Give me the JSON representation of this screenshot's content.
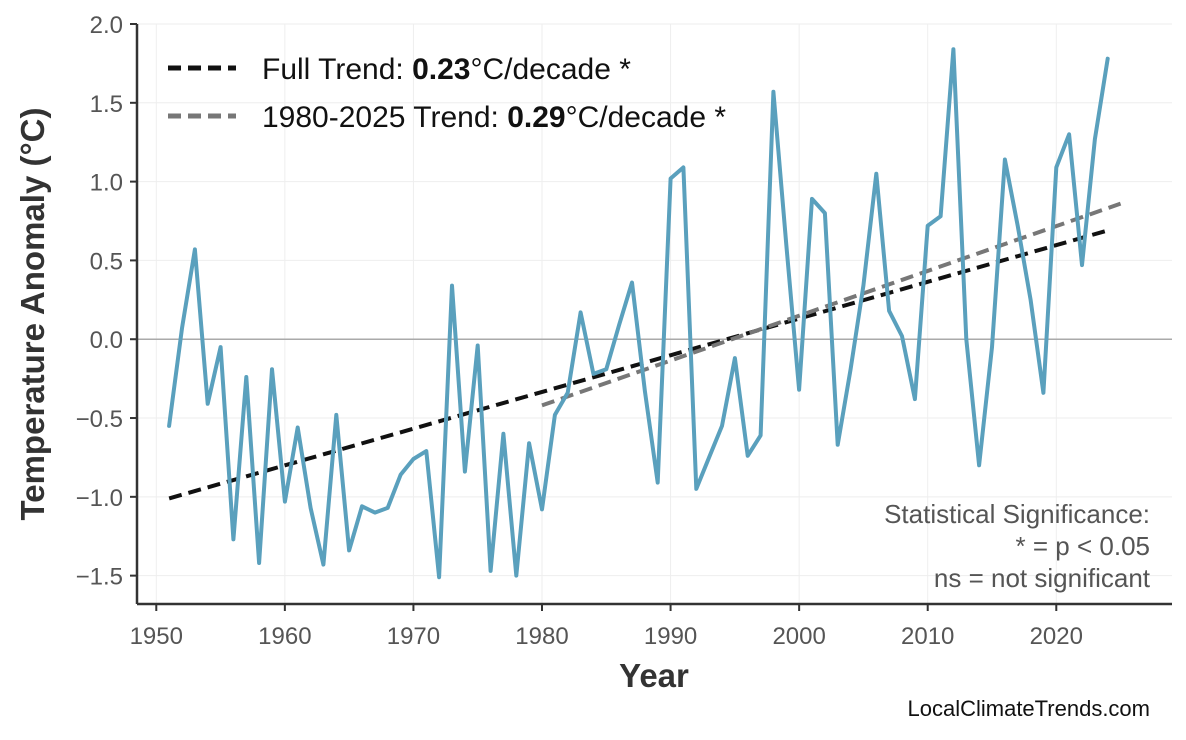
{
  "chart_data": {
    "type": "line",
    "title": "",
    "xlabel": "Year",
    "ylabel": "Temperature Anomaly (°C)",
    "xlim": [
      1948.5,
      2029
    ],
    "ylim": [
      -1.68,
      2.0
    ],
    "xticks": [
      1950,
      1960,
      1970,
      1980,
      1990,
      2000,
      2010,
      2020
    ],
    "yticks": [
      -1.5,
      -1.0,
      -0.5,
      0.0,
      0.5,
      1.0,
      1.5,
      2.0
    ],
    "xtick_labels": [
      "1950",
      "1960",
      "1970",
      "1980",
      "1990",
      "2000",
      "2010",
      "2020"
    ],
    "ytick_labels": [
      "−1.5",
      "−1.0",
      "−0.5",
      "0.0",
      "0.5",
      "1.0",
      "1.5",
      "2.0"
    ],
    "grid": true,
    "zero_line": true,
    "series": [
      {
        "color": "#5aa0bd",
        "x": [
          1951,
          1952,
          1953,
          1954,
          1955,
          1956,
          1957,
          1958,
          1959,
          1960,
          1961,
          1962,
          1963,
          1964,
          1965,
          1966,
          1967,
          1968,
          1969,
          1970,
          1971,
          1972,
          1973,
          1974,
          1975,
          1976,
          1977,
          1978,
          1979,
          1980,
          1981,
          1982,
          1983,
          1984,
          1985,
          1986,
          1987,
          1988,
          1989,
          1990,
          1991,
          1992,
          1993,
          1994,
          1995,
          1996,
          1997,
          1998,
          1999,
          2000,
          2001,
          2002,
          2003,
          2004,
          2005,
          2006,
          2007,
          2008,
          2009,
          2010,
          2011,
          2012,
          2013,
          2014,
          2015,
          2016,
          2017,
          2018,
          2019,
          2020,
          2021,
          2022,
          2023,
          2024
        ],
        "values": [
          -0.55,
          0.07,
          0.57,
          -0.41,
          -0.05,
          -1.27,
          -0.24,
          -1.42,
          -0.19,
          -1.03,
          -0.56,
          -1.07,
          -1.43,
          -0.48,
          -1.34,
          -1.06,
          -1.1,
          -1.07,
          -0.86,
          -0.76,
          -0.71,
          -1.51,
          0.34,
          -0.84,
          -0.04,
          -1.47,
          -0.6,
          -1.5,
          -0.66,
          -1.08,
          -0.48,
          -0.34,
          0.17,
          -0.22,
          -0.19,
          0.09,
          0.36,
          -0.33,
          -0.91,
          1.02,
          1.09,
          -0.95,
          -0.75,
          -0.55,
          -0.12,
          -0.74,
          -0.61,
          1.57,
          0.6,
          -0.32,
          0.89,
          0.8,
          -0.67,
          -0.19,
          0.34,
          1.05,
          0.18,
          0.02,
          -0.38,
          0.72,
          0.78,
          1.84,
          0.0,
          -0.8,
          -0.05,
          1.14,
          0.72,
          0.25,
          -0.34,
          1.09,
          1.3,
          0.47,
          1.27,
          1.78
        ]
      }
    ],
    "trends": [
      {
        "name_prefix": "Full Trend: ",
        "value": "0.23",
        "name_suffix": "°C/decade *",
        "color": "#111111",
        "x": [
          1951,
          2024
        ],
        "values": [
          -1.01,
          0.69
        ]
      },
      {
        "name_prefix": "1980-2025 Trend: ",
        "value": "0.29",
        "name_suffix": "°C/decade *",
        "color": "#777777",
        "x": [
          1980,
          2025
        ],
        "values": [
          -0.42,
          0.86
        ]
      }
    ],
    "legend_position": "top-left",
    "annotation_lines": [
      "Statistical Significance:",
      "* = p < 0.05",
      "ns = not significant"
    ],
    "credit": "LocalClimateTrends.com"
  },
  "colors": {
    "axis": "#333333",
    "tick_label": "#555555",
    "grid": "#eeeeee",
    "zero_line": "#aaaaaa",
    "annotation": "#555555"
  }
}
